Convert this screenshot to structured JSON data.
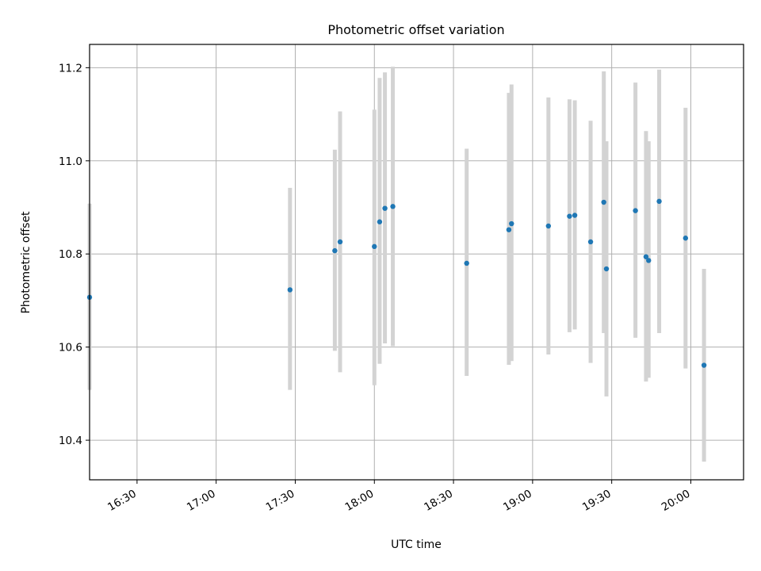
{
  "chart_data": {
    "type": "scatter",
    "title": "Photometric offset variation",
    "xlabel": "UTC time",
    "ylabel": "Photometric offset",
    "x_ticks": [
      "16:30",
      "17:00",
      "17:30",
      "18:00",
      "18:30",
      "19:00",
      "19:30",
      "20:00"
    ],
    "y_ticks": [
      "10.4",
      "10.6",
      "10.8",
      "11.0",
      "11.2"
    ],
    "xlim": [
      "16:12",
      "20:20"
    ],
    "ylim": [
      10.315,
      11.25
    ],
    "grid": true,
    "marker_color": "#1f77b4",
    "errorbar_color": "#d3d3d3",
    "points": [
      {
        "t": "16:12",
        "y": 10.707,
        "low": 10.508,
        "high": 10.908
      },
      {
        "t": "17:28",
        "y": 10.723,
        "low": 10.508,
        "high": 10.942
      },
      {
        "t": "17:45",
        "y": 10.807,
        "low": 10.592,
        "high": 11.024
      },
      {
        "t": "17:47",
        "y": 10.826,
        "low": 10.546,
        "high": 11.106
      },
      {
        "t": "18:00",
        "y": 10.816,
        "low": 10.518,
        "high": 11.11
      },
      {
        "t": "18:02",
        "y": 10.869,
        "low": 10.564,
        "high": 11.178
      },
      {
        "t": "18:04",
        "y": 10.898,
        "low": 10.608,
        "high": 11.19
      },
      {
        "t": "18:07",
        "y": 10.902,
        "low": 10.602,
        "high": 11.202
      },
      {
        "t": "18:35",
        "y": 10.78,
        "low": 10.538,
        "high": 11.026
      },
      {
        "t": "18:51",
        "y": 10.852,
        "low": 10.562,
        "high": 11.146
      },
      {
        "t": "18:52",
        "y": 10.865,
        "low": 10.57,
        "high": 11.164
      },
      {
        "t": "19:06",
        "y": 10.86,
        "low": 10.584,
        "high": 11.136
      },
      {
        "t": "19:14",
        "y": 10.881,
        "low": 10.632,
        "high": 11.132
      },
      {
        "t": "19:16",
        "y": 10.883,
        "low": 10.638,
        "high": 11.13
      },
      {
        "t": "19:22",
        "y": 10.826,
        "low": 10.566,
        "high": 11.086
      },
      {
        "t": "19:27",
        "y": 10.911,
        "low": 10.63,
        "high": 11.192
      },
      {
        "t": "19:28",
        "y": 10.768,
        "low": 10.494,
        "high": 11.042
      },
      {
        "t": "19:39",
        "y": 10.893,
        "low": 10.62,
        "high": 11.168
      },
      {
        "t": "19:43",
        "y": 10.794,
        "low": 10.526,
        "high": 11.064
      },
      {
        "t": "19:44",
        "y": 10.786,
        "low": 10.534,
        "high": 11.042
      },
      {
        "t": "19:48",
        "y": 10.913,
        "low": 10.63,
        "high": 11.196
      },
      {
        "t": "19:58",
        "y": 10.834,
        "low": 10.554,
        "high": 11.114
      },
      {
        "t": "20:05",
        "y": 10.561,
        "low": 10.354,
        "high": 10.768
      }
    ]
  }
}
